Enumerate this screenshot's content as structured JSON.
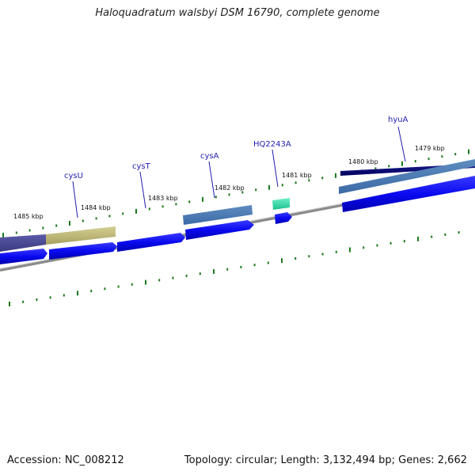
{
  "title": "Haloquadratum walsbyi DSM 16790, complete genome",
  "accession": "Accession: NC_008212",
  "topology": "Topology: circular; Length: 3,132,494 bp; Genes: 2,662",
  "colors": {
    "tick": "#1e7a1e",
    "backbone": "#8a8a8a",
    "gene_label": "#1f1fb0",
    "cds": "#0a0af0"
  },
  "kbp_labels": [
    "1485 kbp",
    "1484 kbp",
    "1483 kbp",
    "1482 kbp",
    "1481 kbp",
    "1480 kbp",
    "1479 kbp"
  ],
  "gene_labels": [
    "cysU",
    "cysT",
    "cysA",
    "HQ2243A",
    "hyuA"
  ]
}
